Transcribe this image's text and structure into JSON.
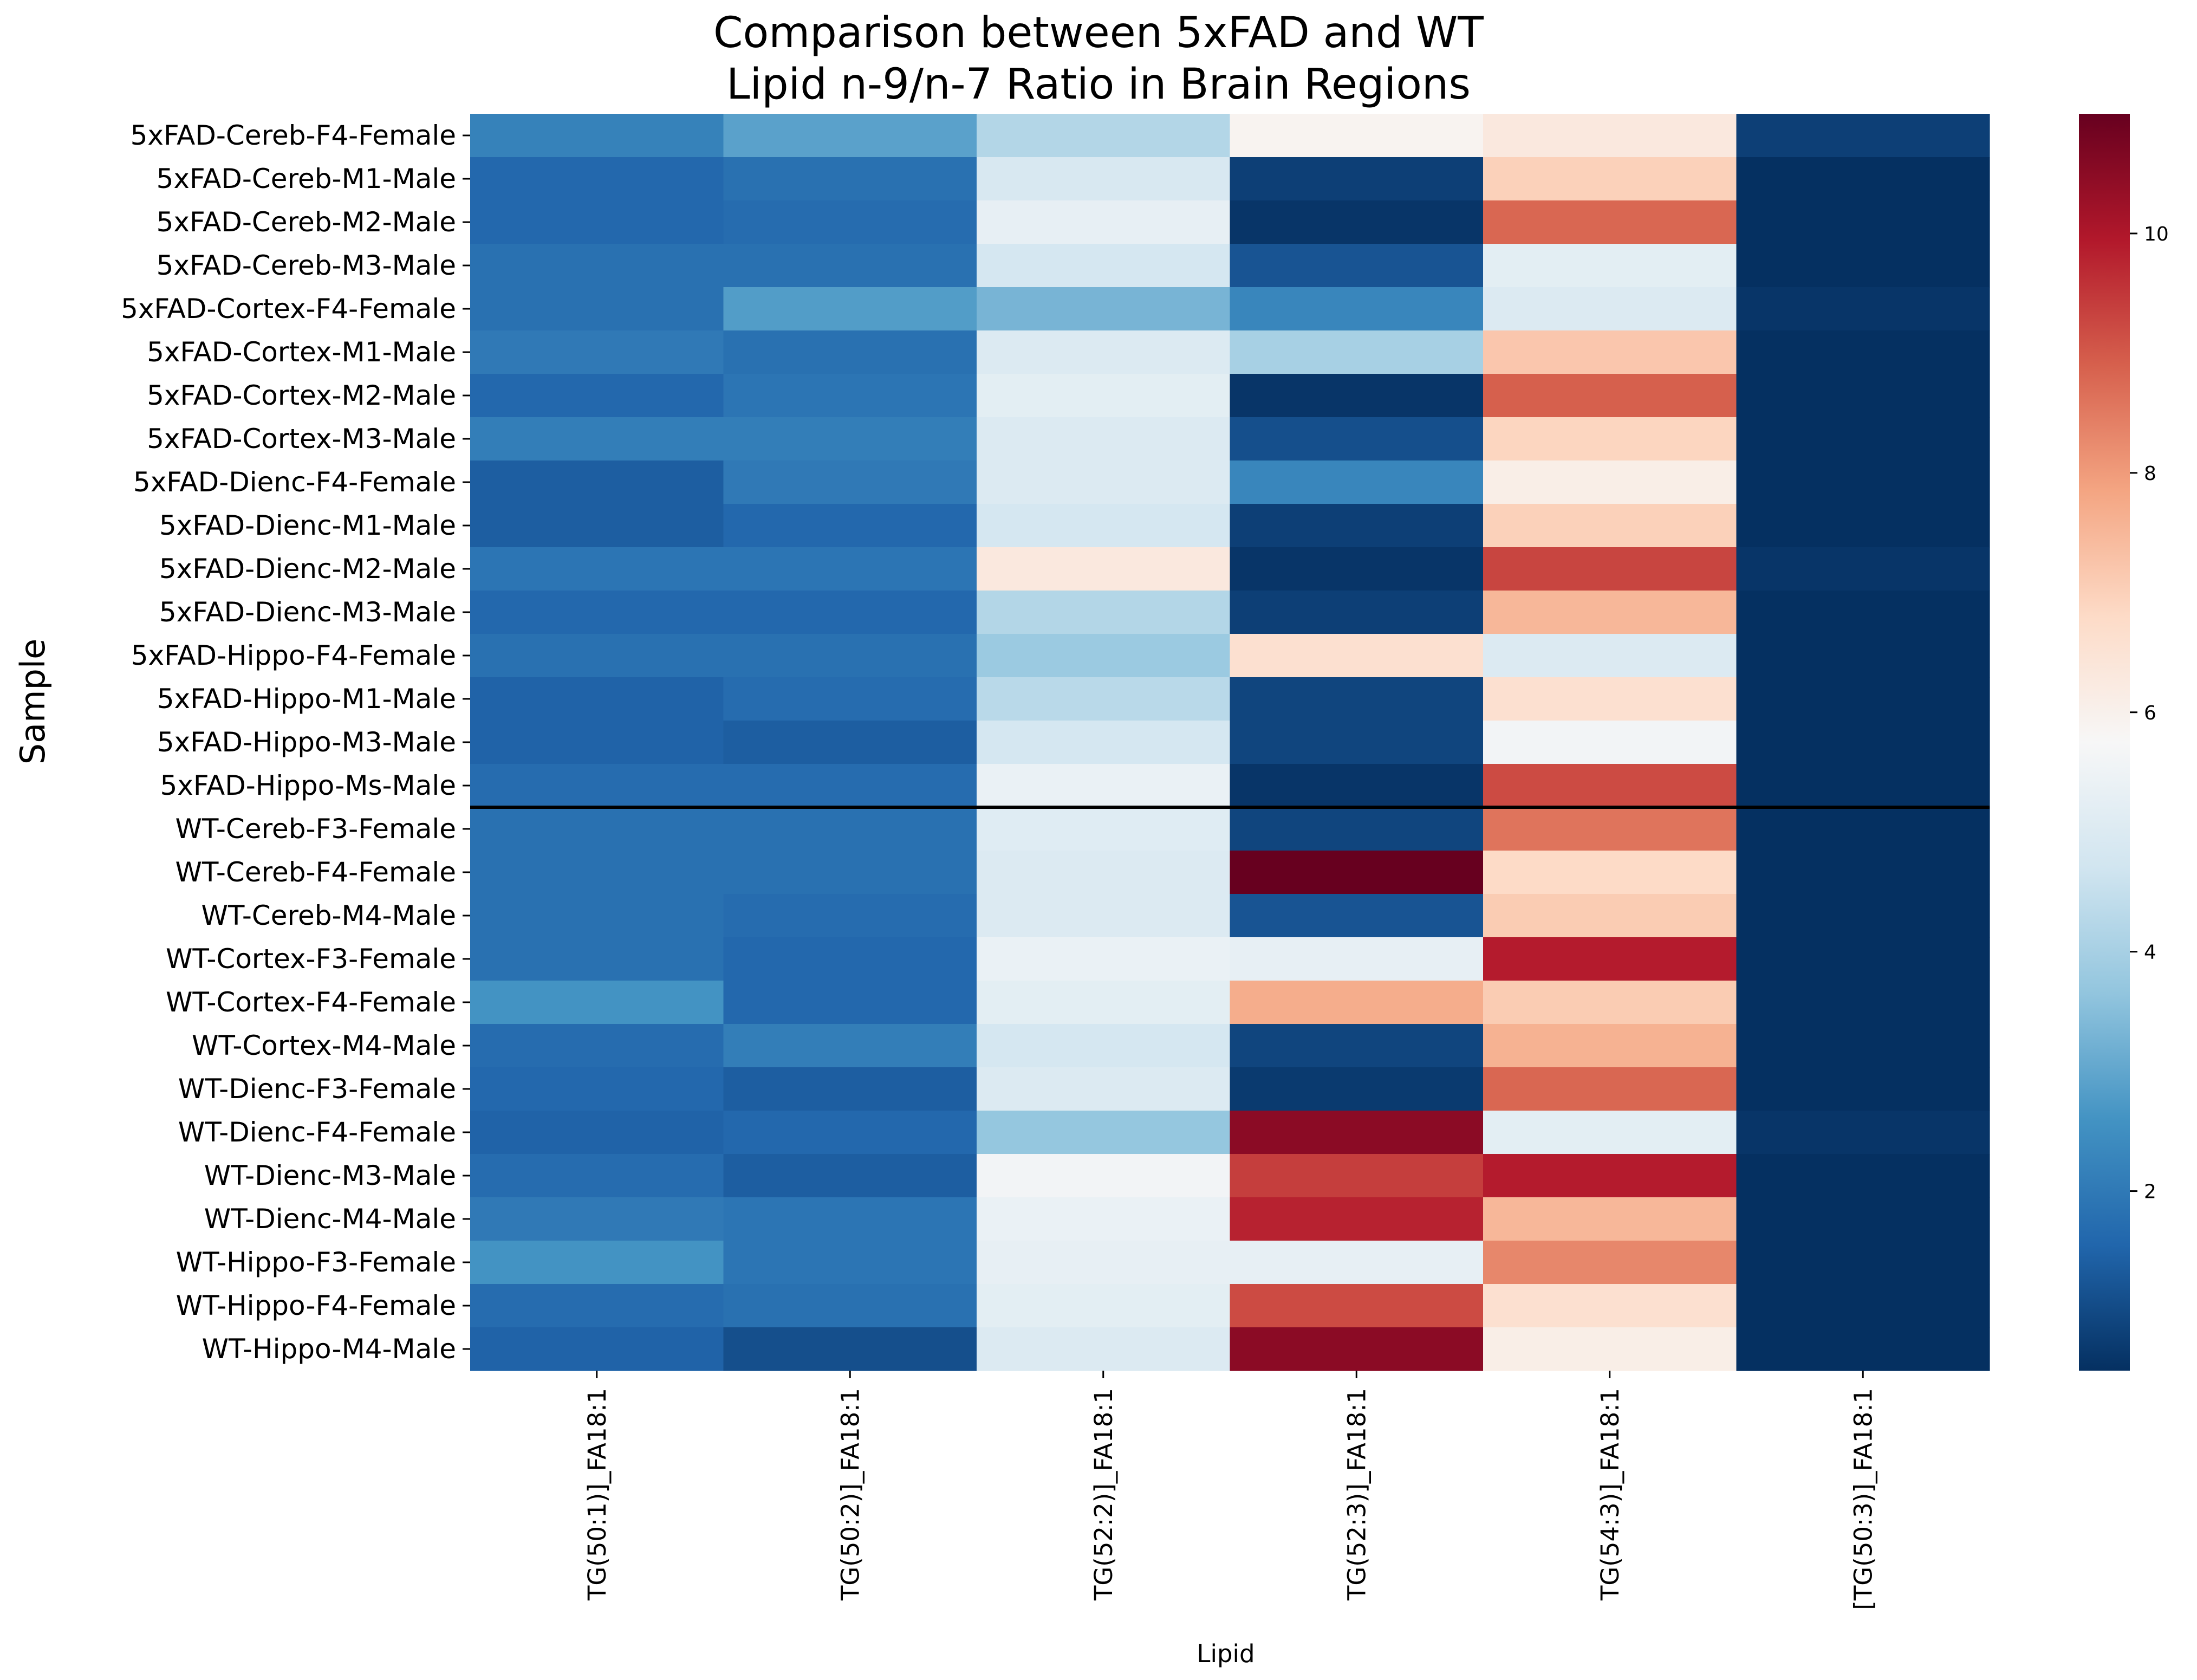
{
  "chart_data": {
    "type": "heatmap",
    "title_lines": [
      "Comparison between 5xFAD and WT",
      "Lipid n-9/n-7 Ratio in Brain Regions"
    ],
    "xlabel": "Lipid",
    "ylabel": "Sample",
    "columns": [
      "TG(50:1)]_FA18:1",
      "TG(50:2)]_FA18:1",
      "TG(52:2)]_FA18:1",
      "TG(52:3)]_FA18:1",
      "TG(54:3)]_FA18:1",
      "[TG(50:3)]_FA18:1"
    ],
    "rows": [
      "5xFAD-Cereb-F4-Female",
      "5xFAD-Cereb-M1-Male",
      "5xFAD-Cereb-M2-Male",
      "5xFAD-Cereb-M3-Male",
      "5xFAD-Cortex-F4-Female",
      "5xFAD-Cortex-M1-Male",
      "5xFAD-Cortex-M2-Male",
      "5xFAD-Cortex-M3-Male",
      "5xFAD-Dienc-F4-Female",
      "5xFAD-Dienc-M1-Male",
      "5xFAD-Dienc-M2-Male",
      "5xFAD-Dienc-M3-Male",
      "5xFAD-Hippo-F4-Female",
      "5xFAD-Hippo-M1-Male",
      "5xFAD-Hippo-M3-Male",
      "5xFAD-Hippo-Ms-Male",
      "WT-Cereb-F3-Female",
      "WT-Cereb-F4-Female",
      "WT-Cereb-M4-Male",
      "WT-Cortex-F3-Female",
      "WT-Cortex-F4-Female",
      "WT-Cortex-M4-Male",
      "WT-Dienc-F3-Female",
      "WT-Dienc-F4-Female",
      "WT-Dienc-M3-Male",
      "WT-Dienc-M4-Male",
      "WT-Hippo-F3-Female",
      "WT-Hippo-F4-Female",
      "WT-Hippo-M4-Male"
    ],
    "values": [
      [
        2.2,
        2.9,
        4.2,
        5.9,
        6.3,
        0.8
      ],
      [
        1.6,
        1.8,
        4.9,
        0.8,
        7.0,
        0.5
      ],
      [
        1.6,
        1.7,
        5.3,
        0.6,
        8.8,
        0.5
      ],
      [
        1.8,
        1.8,
        4.8,
        1.2,
        5.2,
        0.5
      ],
      [
        1.8,
        2.8,
        3.3,
        2.3,
        5.0,
        0.6
      ],
      [
        2.0,
        1.8,
        5.0,
        4.0,
        7.2,
        0.5
      ],
      [
        1.6,
        1.9,
        5.2,
        0.6,
        8.9,
        0.5
      ],
      [
        2.1,
        2.1,
        5.0,
        1.1,
        6.9,
        0.5
      ],
      [
        1.4,
        2.0,
        5.0,
        2.3,
        6.1,
        0.5
      ],
      [
        1.4,
        1.6,
        4.8,
        0.8,
        7.0,
        0.5
      ],
      [
        1.9,
        1.9,
        6.3,
        0.6,
        9.3,
        0.6
      ],
      [
        1.6,
        1.6,
        4.2,
        0.8,
        7.5,
        0.5
      ],
      [
        1.8,
        1.8,
        3.8,
        6.6,
        5.0,
        0.5
      ],
      [
        1.5,
        1.7,
        4.3,
        0.9,
        6.6,
        0.5
      ],
      [
        1.5,
        1.4,
        4.8,
        0.9,
        5.6,
        0.5
      ],
      [
        1.7,
        1.7,
        5.4,
        0.6,
        9.2,
        0.5
      ],
      [
        1.8,
        1.8,
        5.1,
        0.9,
        8.6,
        0.5
      ],
      [
        1.8,
        1.8,
        5.0,
        11.0,
        6.8,
        0.5
      ],
      [
        1.8,
        1.7,
        5.0,
        1.2,
        7.1,
        0.5
      ],
      [
        1.8,
        1.6,
        5.4,
        5.3,
        9.9,
        0.5
      ],
      [
        2.6,
        1.6,
        5.2,
        7.7,
        7.1,
        0.5
      ],
      [
        1.7,
        2.1,
        4.8,
        0.9,
        7.6,
        0.5
      ],
      [
        1.6,
        1.4,
        5.0,
        0.7,
        8.8,
        0.5
      ],
      [
        1.5,
        1.6,
        3.7,
        10.5,
        5.2,
        0.6
      ],
      [
        1.7,
        1.4,
        5.6,
        9.4,
        9.9,
        0.5
      ],
      [
        2.0,
        1.9,
        5.4,
        9.8,
        7.5,
        0.5
      ],
      [
        2.6,
        1.9,
        5.3,
        5.3,
        8.3,
        0.5
      ],
      [
        1.7,
        1.8,
        5.2,
        9.2,
        6.6,
        0.5
      ],
      [
        1.5,
        1.1,
        5.0,
        10.5,
        6.1,
        0.5
      ]
    ],
    "separator_after_row": 15,
    "colorbar": {
      "colormap": "RdBu_r",
      "vmin": 0.5,
      "vmax": 11.0,
      "ticks": [
        2,
        4,
        6,
        8,
        10
      ]
    }
  }
}
